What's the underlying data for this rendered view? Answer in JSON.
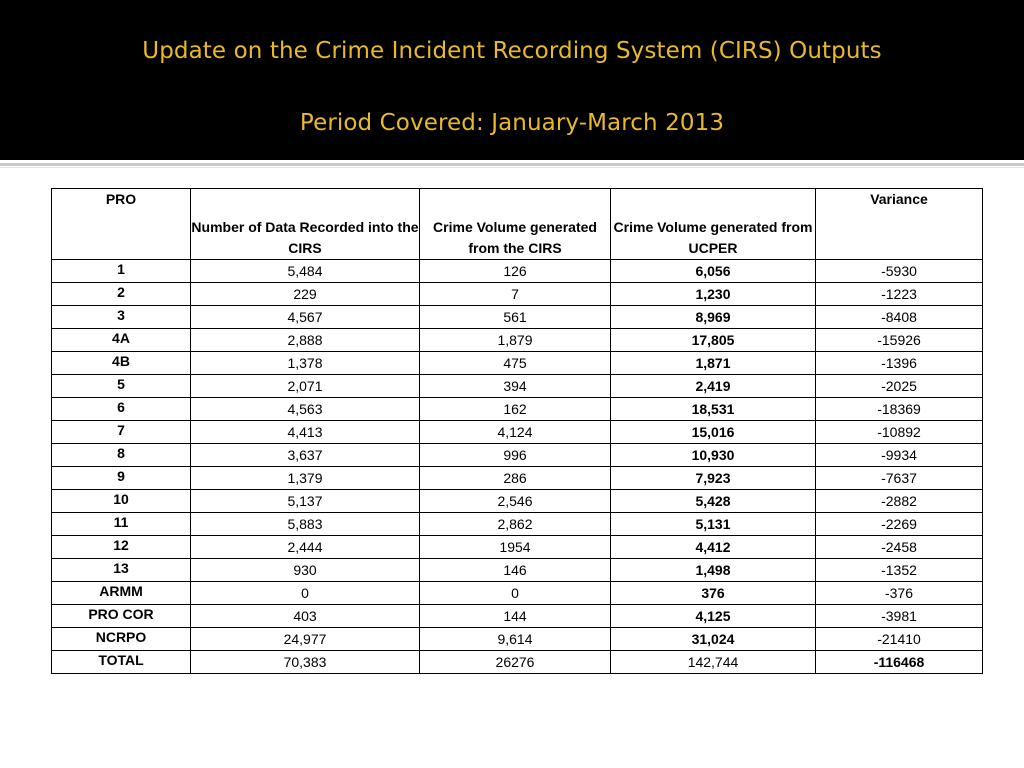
{
  "slide": {
    "title_line1": "Update on the Crime Incident Recording System (CIRS) Outputs",
    "title_line2": "Period Covered: January-March 2013"
  },
  "table": {
    "headers": {
      "pro": "PRO",
      "recorded": "Number of Data Recorded into the CIRS",
      "cirs": "Crime Volume generated from the CIRS",
      "ucper": "Crime Volume generated from UCPER",
      "variance": "Variance"
    },
    "rows": [
      {
        "pro": "1",
        "recorded": "5,484",
        "cirs": "126",
        "ucper": "6,056",
        "variance": "-5930"
      },
      {
        "pro": "2",
        "recorded": "229",
        "cirs": "7",
        "ucper": "1,230",
        "variance": "-1223"
      },
      {
        "pro": "3",
        "recorded": "4,567",
        "cirs": "561",
        "ucper": "8,969",
        "variance": "-8408"
      },
      {
        "pro": "4A",
        "recorded": "2,888",
        "cirs": "1,879",
        "ucper": "17,805",
        "variance": "-15926"
      },
      {
        "pro": "4B",
        "recorded": "1,378",
        "cirs": "475",
        "ucper": "1,871",
        "variance": "-1396"
      },
      {
        "pro": "5",
        "recorded": "2,071",
        "cirs": "394",
        "ucper": "2,419",
        "variance": "-2025"
      },
      {
        "pro": "6",
        "recorded": "4,563",
        "cirs": "162",
        "ucper": "18,531",
        "variance": "-18369"
      },
      {
        "pro": "7",
        "recorded": "4,413",
        "cirs": "4,124",
        "ucper": "15,016",
        "variance": "-10892"
      },
      {
        "pro": "8",
        "recorded": "3,637",
        "cirs": "996",
        "ucper": "10,930",
        "variance": "-9934"
      },
      {
        "pro": "9",
        "recorded": "1,379",
        "cirs": "286",
        "ucper": "7,923",
        "variance": "-7637"
      },
      {
        "pro": "10",
        "recorded": "5,137",
        "cirs": "2,546",
        "ucper": "5,428",
        "variance": "-2882"
      },
      {
        "pro": "11",
        "recorded": "5,883",
        "cirs": "2,862",
        "ucper": "5,131",
        "variance": "-2269"
      },
      {
        "pro": "12",
        "recorded": "2,444",
        "cirs": "1954",
        "ucper": "4,412",
        "variance": "-2458"
      },
      {
        "pro": "13",
        "recorded": "930",
        "cirs": "146",
        "ucper": "1,498",
        "variance": "-1352"
      },
      {
        "pro": "ARMM",
        "recorded": "0",
        "cirs": "0",
        "ucper": "376",
        "variance": "-376"
      },
      {
        "pro": "PRO COR",
        "recorded": "403",
        "cirs": "144",
        "ucper": "4,125",
        "variance": "-3981"
      },
      {
        "pro": "NCRPO",
        "recorded": "24,977",
        "cirs": "9,614",
        "ucper": "31,024",
        "variance": "-21410"
      },
      {
        "pro": "TOTAL",
        "recorded": "70,383",
        "cirs": "26276",
        "ucper": "142,744",
        "variance": "-116468"
      }
    ]
  },
  "colors": {
    "header_background": "#000000",
    "title_text": "#e8b92b"
  }
}
